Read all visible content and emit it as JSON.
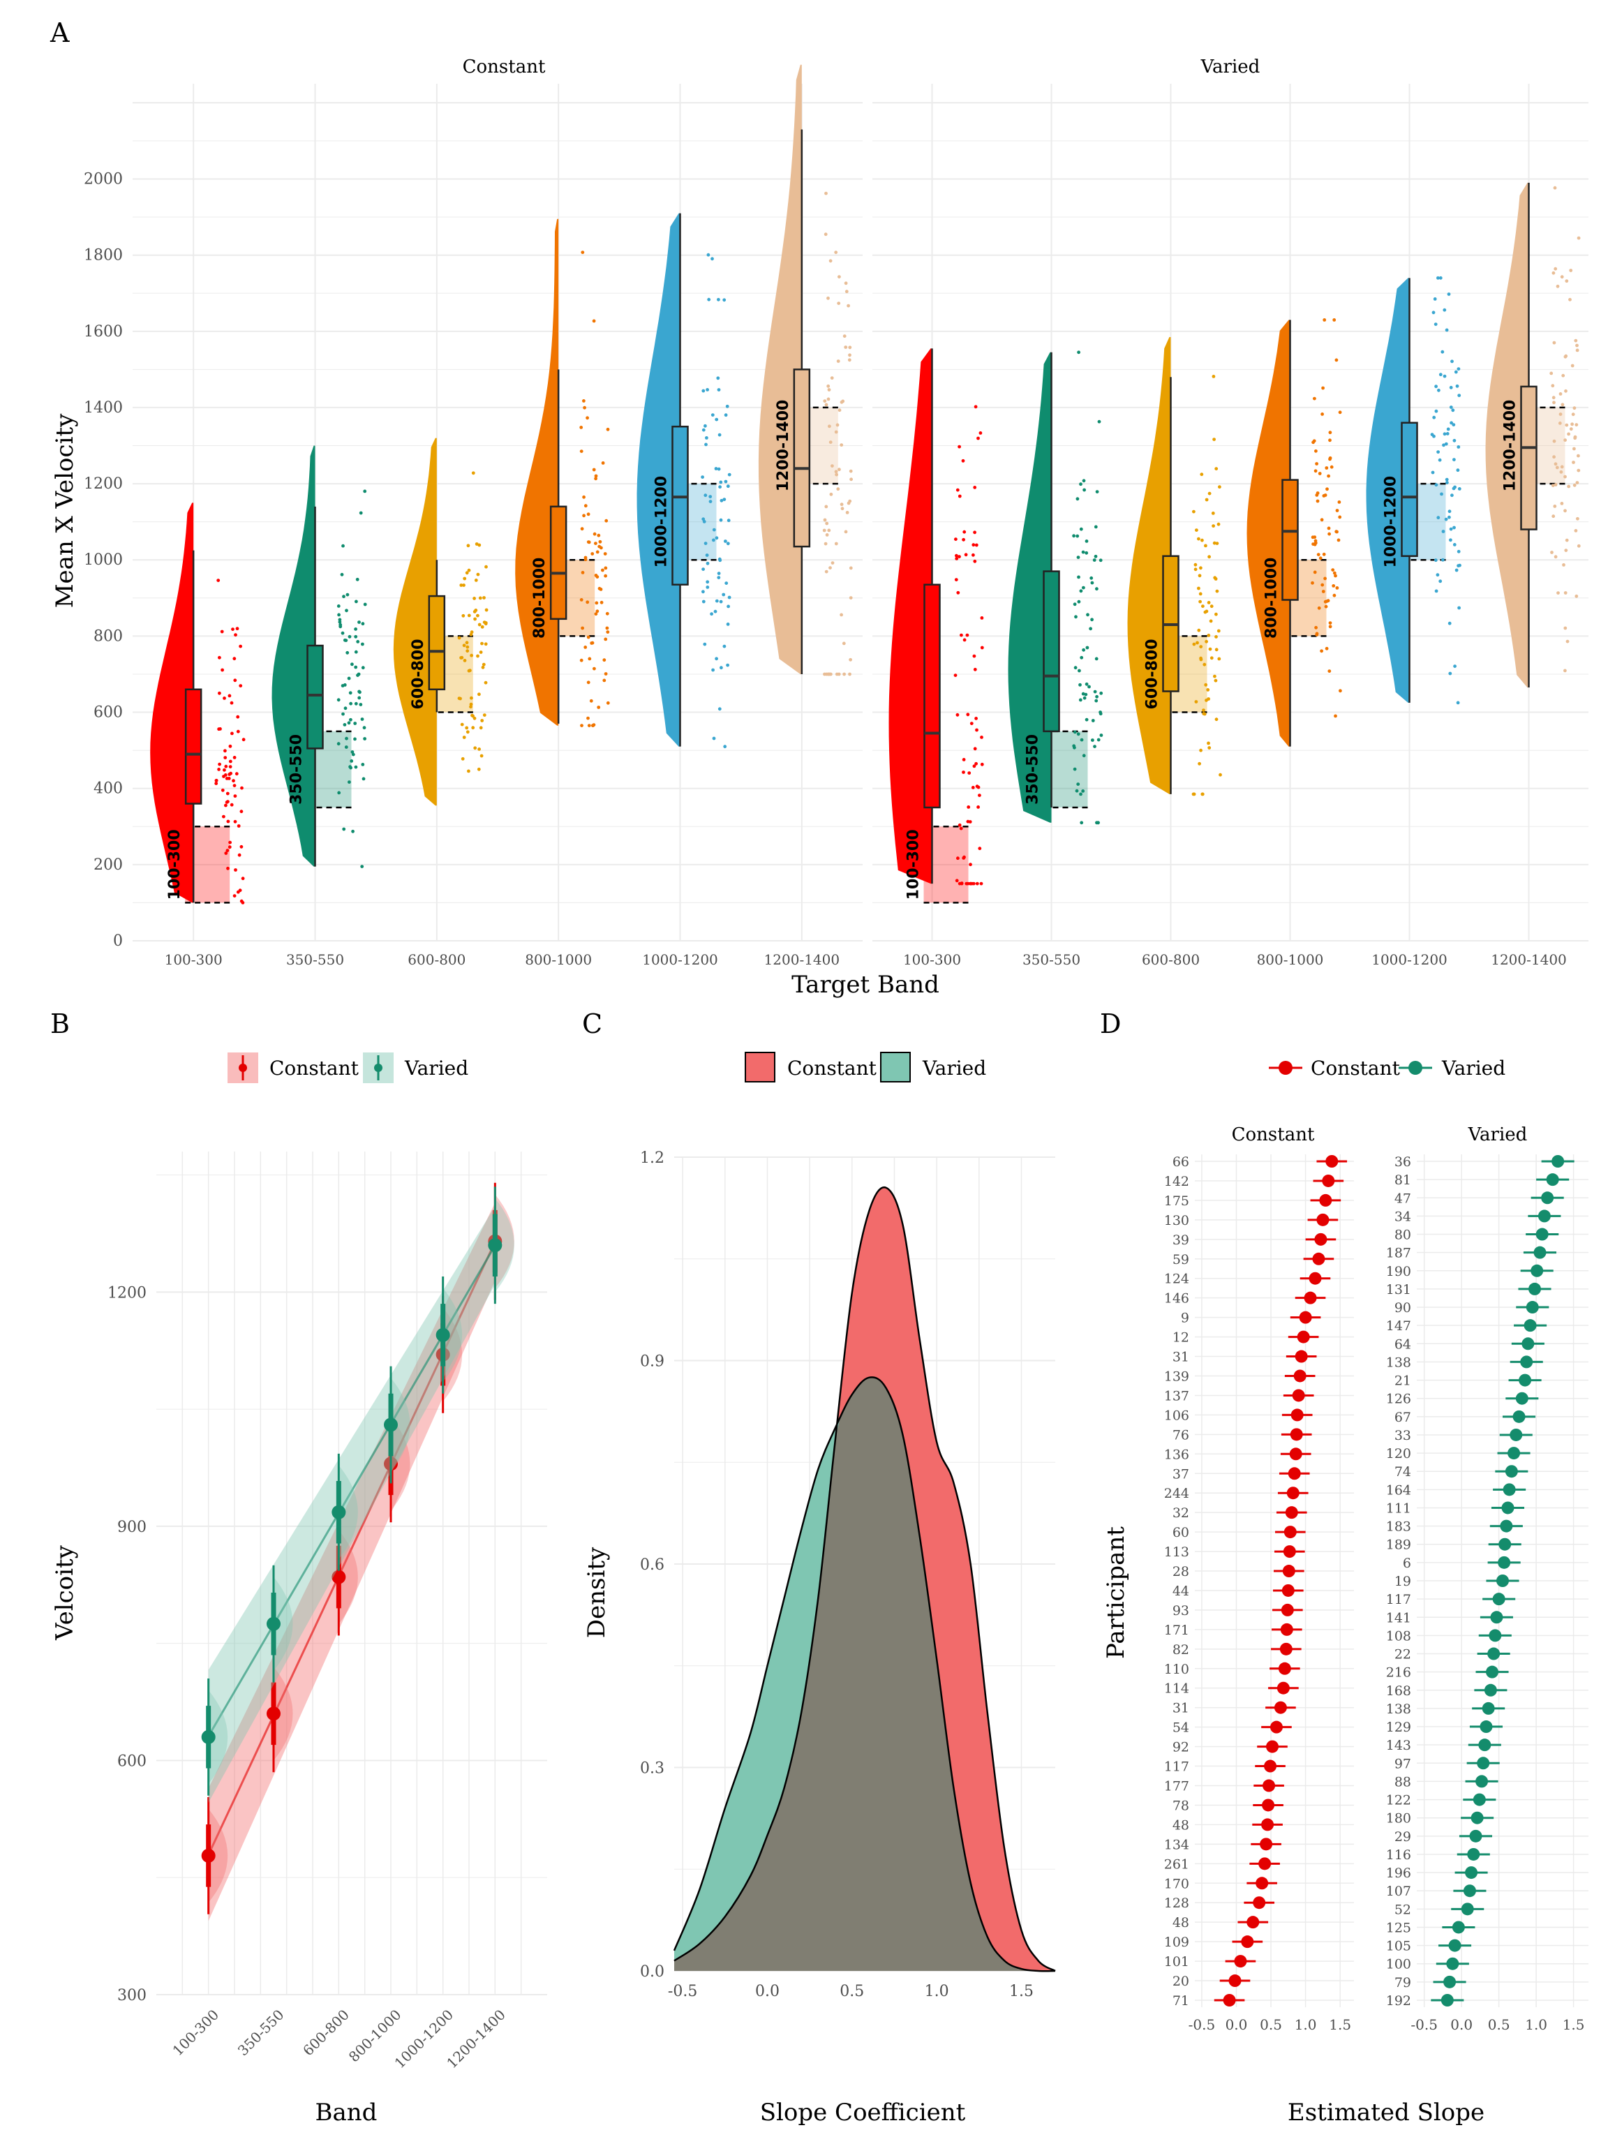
{
  "colors": {
    "band": [
      "#ff0000",
      "#0f8c6e",
      "#e8a000",
      "#f07400",
      "#3aa6d0",
      "#e8bd96"
    ],
    "constant": "#e30000",
    "varied": "#148c6c",
    "constant_fill": "#f26b6b",
    "varied_fill": "#7fc6b2",
    "overlap_fill": "#807e72"
  },
  "panel_a": {
    "letter": "A",
    "facets": [
      "Constant",
      "Varied"
    ],
    "xlabel": "Target  Band",
    "ylabel": "Mean X Velocity",
    "band_labels": [
      "100-300",
      "350-550",
      "600-800",
      "800-1000",
      "1000-1200",
      "1200-1400"
    ]
  },
  "panel_b": {
    "letter": "B",
    "xlabel": "Band",
    "ylabel": "Velcoity",
    "legend": [
      "Constant",
      "Varied"
    ]
  },
  "panel_c": {
    "letter": "C",
    "xlabel": "Slope Coefficient",
    "ylabel": "Density",
    "legend": [
      "Constant",
      "Varied"
    ]
  },
  "panel_d": {
    "letter": "D",
    "xlabel": "Estimated Slope",
    "ylabel": "Participant",
    "legend": [
      "Constant",
      "Varied"
    ],
    "facets": [
      "Constant",
      "Varied"
    ]
  },
  "chart_data": [
    {
      "panel": "A",
      "type": "violin-box-scatter",
      "facets": [
        "Constant",
        "Varied"
      ],
      "categories": [
        "100-300",
        "350-550",
        "600-800",
        "800-1000",
        "1000-1200",
        "1200-1400"
      ],
      "target_bands": [
        [
          100,
          300
        ],
        [
          350,
          550
        ],
        [
          600,
          800
        ],
        [
          800,
          1000
        ],
        [
          1000,
          1200
        ],
        [
          1200,
          1400
        ]
      ],
      "ylim": [
        0,
        2250
      ],
      "yticks": [
        0,
        200,
        400,
        600,
        800,
        1000,
        1200,
        1400,
        1600,
        1800,
        2000
      ],
      "series": [
        {
          "name": "Constant",
          "box": [
            {
              "min": 100,
              "q1": 360,
              "median": 490,
              "q3": 660,
              "max": 1025
            },
            {
              "min": 195,
              "q1": 505,
              "median": 645,
              "q3": 775,
              "max": 1140
            },
            {
              "min": 600,
              "q1": 660,
              "median": 760,
              "q3": 905,
              "max": 1000
            },
            {
              "min": 570,
              "q1": 845,
              "median": 965,
              "q3": 1140,
              "max": 1500
            },
            {
              "min": 510,
              "q1": 935,
              "median": 1165,
              "q3": 1350,
              "max": 1910
            },
            {
              "min": 700,
              "q1": 1035,
              "median": 1240,
              "q3": 1500,
              "max": 2130
            }
          ],
          "violin_range": [
            [
              100,
              1150
            ],
            [
              195,
              1300
            ],
            [
              355,
              1320
            ],
            [
              565,
              1895
            ],
            [
              510,
              1910
            ],
            [
              700,
              2300
            ]
          ]
        },
        {
          "name": "Varied",
          "box": [
            {
              "min": 150,
              "q1": 350,
              "median": 545,
              "q3": 935,
              "max": 1555
            },
            {
              "min": 350,
              "q1": 550,
              "median": 695,
              "q3": 970,
              "max": 1545
            },
            {
              "min": 385,
              "q1": 655,
              "median": 830,
              "q3": 1010,
              "max": 1480
            },
            {
              "min": 510,
              "q1": 895,
              "median": 1075,
              "q3": 1210,
              "max": 1630
            },
            {
              "min": 625,
              "q1": 1010,
              "median": 1165,
              "q3": 1360,
              "max": 1740
            },
            {
              "min": 665,
              "q1": 1080,
              "median": 1295,
              "q3": 1455,
              "max": 1990
            }
          ],
          "violin_range": [
            [
              150,
              1555
            ],
            [
              310,
              1545
            ],
            [
              385,
              1585
            ],
            [
              510,
              1630
            ],
            [
              625,
              1740
            ],
            [
              665,
              1990
            ]
          ]
        }
      ]
    },
    {
      "panel": "B",
      "type": "line",
      "categories": [
        "100-300",
        "350-550",
        "600-800",
        "800-1000",
        "1000-1200",
        "1200-1400"
      ],
      "x": [
        200,
        450,
        700,
        900,
        1100,
        1300
      ],
      "ylim": [
        300,
        1380
      ],
      "yticks": [
        300,
        600,
        900,
        1200
      ],
      "series": [
        {
          "name": "Constant",
          "values": [
            478,
            660,
            835,
            980,
            1120,
            1265
          ]
        },
        {
          "name": "Varied",
          "values": [
            630,
            775,
            918,
            1030,
            1145,
            1260
          ]
        }
      ]
    },
    {
      "panel": "C",
      "type": "area",
      "xlim": [
        -0.55,
        1.7
      ],
      "ylim": [
        0,
        1.2
      ],
      "xticks": [
        -0.5,
        0.0,
        0.5,
        1.0,
        1.5
      ],
      "yticks": [
        0.0,
        0.3,
        0.6,
        0.9,
        1.2
      ],
      "series": [
        {
          "name": "Constant",
          "x": [
            -0.55,
            -0.4,
            -0.25,
            -0.1,
            0.0,
            0.1,
            0.2,
            0.3,
            0.4,
            0.5,
            0.6,
            0.7,
            0.8,
            0.9,
            1.0,
            1.1,
            1.2,
            1.3,
            1.4,
            1.5,
            1.6,
            1.7
          ],
          "values": [
            0.015,
            0.04,
            0.08,
            0.14,
            0.2,
            0.27,
            0.38,
            0.55,
            0.78,
            1.0,
            1.12,
            1.155,
            1.1,
            0.93,
            0.78,
            0.72,
            0.6,
            0.38,
            0.18,
            0.06,
            0.015,
            0.0
          ]
        },
        {
          "name": "Varied",
          "x": [
            -0.55,
            -0.4,
            -0.25,
            -0.1,
            0.0,
            0.1,
            0.2,
            0.3,
            0.4,
            0.5,
            0.6,
            0.7,
            0.8,
            0.9,
            1.0,
            1.1,
            1.2,
            1.3,
            1.4,
            1.5,
            1.6,
            1.7
          ],
          "values": [
            0.03,
            0.12,
            0.24,
            0.35,
            0.45,
            0.55,
            0.65,
            0.74,
            0.8,
            0.85,
            0.875,
            0.86,
            0.79,
            0.64,
            0.46,
            0.27,
            0.13,
            0.05,
            0.015,
            0.003,
            0.0,
            0.0
          ]
        }
      ]
    },
    {
      "panel": "D",
      "type": "scatter",
      "xlim": [
        -0.6,
        1.7
      ],
      "xticks": [
        -0.5,
        0.0,
        0.5,
        1.0,
        1.5
      ],
      "series": [
        {
          "name": "Constant",
          "participants": [
            "66",
            "142",
            "175",
            "130",
            "39",
            "59",
            "124",
            "146",
            "9",
            "12",
            "31",
            "139",
            "137",
            "106",
            "76",
            "136",
            "37",
            "244",
            "32",
            "60",
            "113",
            "28",
            "44",
            "93",
            "171",
            "82",
            "110",
            "114",
            "31",
            "54",
            "92",
            "117",
            "177",
            "78",
            "48",
            "134",
            "261",
            "170",
            "128",
            "48",
            "109",
            "101",
            "20",
            "71"
          ],
          "values": [
            1.38,
            1.33,
            1.29,
            1.25,
            1.22,
            1.19,
            1.14,
            1.07,
            1.0,
            0.97,
            0.94,
            0.92,
            0.9,
            0.88,
            0.87,
            0.86,
            0.84,
            0.82,
            0.8,
            0.78,
            0.77,
            0.76,
            0.75,
            0.74,
            0.73,
            0.72,
            0.7,
            0.68,
            0.64,
            0.58,
            0.52,
            0.49,
            0.47,
            0.46,
            0.45,
            0.43,
            0.41,
            0.37,
            0.33,
            0.24,
            0.16,
            0.06,
            -0.02,
            -0.1
          ]
        },
        {
          "name": "Varied",
          "participants": [
            "36",
            "81",
            "47",
            "34",
            "80",
            "187",
            "190",
            "131",
            "90",
            "147",
            "64",
            "138",
            "21",
            "126",
            "67",
            "33",
            "120",
            "74",
            "164",
            "111",
            "183",
            "189",
            "6",
            "19",
            "117",
            "141",
            "108",
            "22",
            "216",
            "168",
            "138",
            "129",
            "143",
            "97",
            "88",
            "122",
            "180",
            "29",
            "116",
            "196",
            "107",
            "52",
            "125",
            "105",
            "100",
            "79",
            "192"
          ],
          "values": [
            1.29,
            1.22,
            1.15,
            1.11,
            1.08,
            1.05,
            1.01,
            0.98,
            0.95,
            0.92,
            0.89,
            0.87,
            0.85,
            0.81,
            0.77,
            0.73,
            0.7,
            0.67,
            0.64,
            0.62,
            0.6,
            0.58,
            0.57,
            0.55,
            0.5,
            0.47,
            0.45,
            0.43,
            0.41,
            0.39,
            0.36,
            0.33,
            0.31,
            0.29,
            0.27,
            0.24,
            0.21,
            0.19,
            0.16,
            0.13,
            0.11,
            0.08,
            -0.04,
            -0.09,
            -0.12,
            -0.16,
            -0.19
          ]
        }
      ]
    }
  ]
}
